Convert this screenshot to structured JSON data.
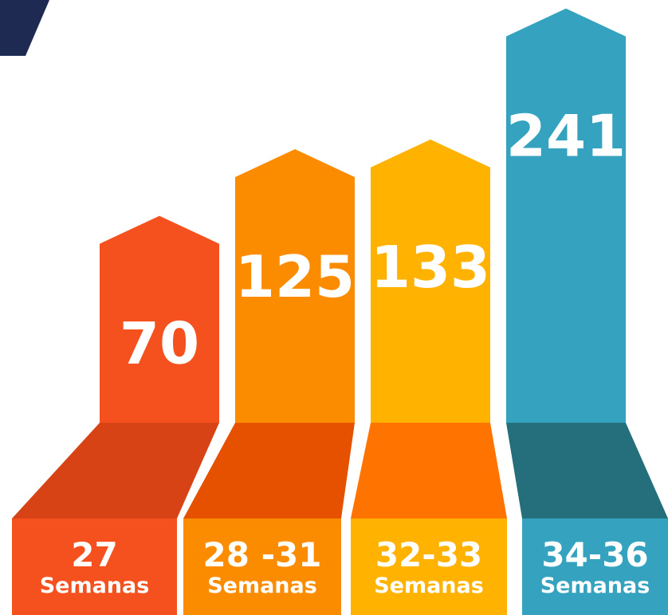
{
  "chart_data": {
    "type": "arrow-bar",
    "categories": [
      "27",
      "28 -31",
      "32-33",
      "34-36"
    ],
    "category_sublabels": [
      "Semanas",
      "Semanas",
      "Semanas",
      "Semanas"
    ],
    "values": [
      70,
      125,
      133,
      241
    ],
    "colors": [
      "#f4511e",
      "#fb8c00",
      "#ffb300",
      "#35a3c0"
    ],
    "shade_colors": [
      "#d84315",
      "#e65100",
      "#ff7300",
      "#256e7c"
    ]
  }
}
